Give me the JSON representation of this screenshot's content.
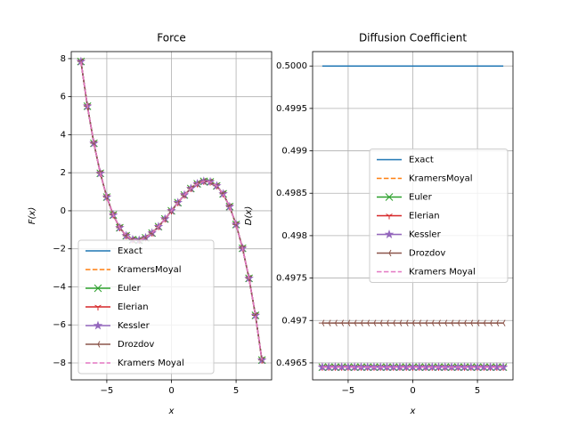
{
  "chart_data": [
    {
      "type": "line",
      "title": "Force",
      "xlabel": "x",
      "ylabel": "F(x)",
      "x": [
        -7,
        -6.5,
        -6,
        -5.5,
        -5,
        -4.5,
        -4,
        -3.5,
        -3,
        -2.5,
        -2,
        -1.5,
        -1,
        -0.5,
        0,
        0.5,
        1,
        1.5,
        2,
        2.5,
        3,
        3.5,
        4,
        4.5,
        5,
        5.5,
        6,
        6.5,
        7
      ],
      "series": [
        {
          "name": "Exact",
          "color": "#1f77b4",
          "marker": null,
          "dash": false,
          "values": [
            7.85,
            5.5,
            3.55,
            1.97,
            0.72,
            -0.22,
            -0.89,
            -1.31,
            -1.52,
            -1.55,
            -1.42,
            -1.17,
            -0.83,
            -0.43,
            0,
            0.43,
            0.83,
            1.17,
            1.42,
            1.55,
            1.52,
            1.31,
            0.89,
            0.22,
            -0.72,
            -1.97,
            -3.55,
            -5.5,
            -7.85
          ]
        },
        {
          "name": "KramersMoyal",
          "color": "#ff7f0e",
          "marker": null,
          "dash": true,
          "values": [
            7.85,
            5.5,
            3.55,
            1.97,
            0.72,
            -0.22,
            -0.89,
            -1.31,
            -1.52,
            -1.55,
            -1.42,
            -1.17,
            -0.83,
            -0.43,
            0,
            0.43,
            0.83,
            1.17,
            1.42,
            1.55,
            1.52,
            1.31,
            0.89,
            0.22,
            -0.72,
            -1.97,
            -3.55,
            -5.5,
            -7.85
          ]
        },
        {
          "name": "Euler",
          "color": "#2ca02c",
          "marker": "x",
          "dash": false,
          "values": [
            7.85,
            5.5,
            3.55,
            1.97,
            0.72,
            -0.22,
            -0.89,
            -1.31,
            -1.52,
            -1.55,
            -1.42,
            -1.17,
            -0.83,
            -0.43,
            0,
            0.43,
            0.83,
            1.17,
            1.42,
            1.55,
            1.52,
            1.31,
            0.89,
            0.22,
            -0.72,
            -1.97,
            -3.55,
            -5.5,
            -7.85
          ]
        },
        {
          "name": "Elerian",
          "color": "#d62728",
          "marker": "tri_down",
          "dash": false,
          "values": [
            7.85,
            5.5,
            3.55,
            1.97,
            0.72,
            -0.22,
            -0.89,
            -1.31,
            -1.52,
            -1.55,
            -1.42,
            -1.17,
            -0.83,
            -0.43,
            0,
            0.43,
            0.83,
            1.17,
            1.42,
            1.55,
            1.52,
            1.31,
            0.89,
            0.22,
            -0.72,
            -1.97,
            -3.55,
            -5.5,
            -7.85
          ]
        },
        {
          "name": "Kessler",
          "color": "#9467bd",
          "marker": "star",
          "dash": false,
          "values": [
            7.85,
            5.5,
            3.55,
            1.97,
            0.72,
            -0.22,
            -0.89,
            -1.31,
            -1.52,
            -1.55,
            -1.42,
            -1.17,
            -0.83,
            -0.43,
            0,
            0.43,
            0.83,
            1.17,
            1.42,
            1.55,
            1.52,
            1.31,
            0.89,
            0.22,
            -0.72,
            -1.97,
            -3.55,
            -5.5,
            -7.85
          ]
        },
        {
          "name": "Drozdov",
          "color": "#8c564b",
          "marker": "tri_left",
          "dash": false,
          "values": [
            7.85,
            5.5,
            3.55,
            1.97,
            0.72,
            -0.22,
            -0.89,
            -1.31,
            -1.52,
            -1.55,
            -1.42,
            -1.17,
            -0.83,
            -0.43,
            0,
            0.43,
            0.83,
            1.17,
            1.42,
            1.55,
            1.52,
            1.31,
            0.89,
            0.22,
            -0.72,
            -1.97,
            -3.55,
            -5.5,
            -7.85
          ]
        },
        {
          "name": "Kramers Moyal",
          "color": "#e377c2",
          "marker": null,
          "dash": true,
          "values": [
            7.85,
            5.5,
            3.55,
            1.97,
            0.72,
            -0.22,
            -0.89,
            -1.31,
            -1.52,
            -1.55,
            -1.42,
            -1.17,
            -0.83,
            -0.43,
            0,
            0.43,
            0.83,
            1.17,
            1.42,
            1.55,
            1.52,
            1.31,
            0.89,
            0.22,
            -0.72,
            -1.97,
            -3.55,
            -5.5,
            -7.85
          ]
        }
      ],
      "xlim": [
        -7.75,
        7.75
      ],
      "xticks": [
        {
          "value": -5,
          "label": "−5"
        },
        0,
        5
      ],
      "ylim": [
        -8.89,
        8.37
      ],
      "yticks": [
        {
          "value": -8,
          "label": "−8"
        },
        {
          "value": -6,
          "label": "−6"
        },
        {
          "value": -4,
          "label": "−4"
        },
        {
          "value": -2,
          "label": "−2"
        },
        0,
        2,
        4,
        6,
        8
      ],
      "grid": true,
      "legend": "lower left"
    },
    {
      "type": "line",
      "title": "Diffusion Coefficient",
      "xlabel": "x",
      "ylabel": "D(x)",
      "x": [
        -7,
        -6.5,
        -6,
        -5.5,
        -5,
        -4.5,
        -4,
        -3.5,
        -3,
        -2.5,
        -2,
        -1.5,
        -1,
        -0.5,
        0,
        0.5,
        1,
        1.5,
        2,
        2.5,
        3,
        3.5,
        4,
        4.5,
        5,
        5.5,
        6,
        6.5,
        7
      ],
      "series": [
        {
          "name": "Exact",
          "color": "#1f77b4",
          "marker": null,
          "dash": false,
          "values": [
            0.5,
            0.5,
            0.5,
            0.5,
            0.5,
            0.5,
            0.5,
            0.5,
            0.5,
            0.5,
            0.5,
            0.5,
            0.5,
            0.5,
            0.5,
            0.5,
            0.5,
            0.5,
            0.5,
            0.5,
            0.5,
            0.5,
            0.5,
            0.5,
            0.5,
            0.5,
            0.5,
            0.5,
            0.5
          ]
        },
        {
          "name": "KramersMoyal",
          "color": "#ff7f0e",
          "marker": null,
          "dash": true,
          "values": [
            0.49645,
            0.49645,
            0.49645,
            0.49645,
            0.49645,
            0.49645,
            0.49645,
            0.49645,
            0.49645,
            0.49645,
            0.49645,
            0.49645,
            0.49645,
            0.49645,
            0.49645,
            0.49645,
            0.49645,
            0.49645,
            0.49645,
            0.49645,
            0.49645,
            0.49645,
            0.49645,
            0.49645,
            0.49645,
            0.49645,
            0.49645,
            0.49645,
            0.49645
          ]
        },
        {
          "name": "Euler",
          "color": "#2ca02c",
          "marker": "x",
          "dash": false,
          "values": [
            0.49645,
            0.49645,
            0.49645,
            0.49645,
            0.49645,
            0.49645,
            0.49645,
            0.49645,
            0.49645,
            0.49645,
            0.49645,
            0.49645,
            0.49645,
            0.49645,
            0.49645,
            0.49645,
            0.49645,
            0.49645,
            0.49645,
            0.49645,
            0.49645,
            0.49645,
            0.49645,
            0.49645,
            0.49645,
            0.49645,
            0.49645,
            0.49645,
            0.49645
          ]
        },
        {
          "name": "Elerian",
          "color": "#d62728",
          "marker": "tri_down",
          "dash": false,
          "values": [
            0.49645,
            0.49645,
            0.49645,
            0.49645,
            0.49645,
            0.49645,
            0.49645,
            0.49645,
            0.49645,
            0.49645,
            0.49645,
            0.49645,
            0.49645,
            0.49645,
            0.49645,
            0.49645,
            0.49645,
            0.49645,
            0.49645,
            0.49645,
            0.49645,
            0.49645,
            0.49645,
            0.49645,
            0.49645,
            0.49645,
            0.49645,
            0.49645,
            0.49645
          ]
        },
        {
          "name": "Kessler",
          "color": "#9467bd",
          "marker": "star",
          "dash": false,
          "values": [
            0.49645,
            0.49645,
            0.49645,
            0.49645,
            0.49645,
            0.49645,
            0.49645,
            0.49645,
            0.49645,
            0.49645,
            0.49645,
            0.49645,
            0.49645,
            0.49645,
            0.49645,
            0.49645,
            0.49645,
            0.49645,
            0.49645,
            0.49645,
            0.49645,
            0.49645,
            0.49645,
            0.49645,
            0.49645,
            0.49645,
            0.49645,
            0.49645,
            0.49645
          ]
        },
        {
          "name": "Drozdov",
          "color": "#8c564b",
          "marker": "tri_left",
          "dash": false,
          "values": [
            0.49697,
            0.49697,
            0.49697,
            0.49697,
            0.49697,
            0.49697,
            0.49697,
            0.49697,
            0.49697,
            0.49697,
            0.49697,
            0.49697,
            0.49697,
            0.49697,
            0.49697,
            0.49697,
            0.49697,
            0.49697,
            0.49697,
            0.49697,
            0.49697,
            0.49697,
            0.49697,
            0.49697,
            0.49697,
            0.49697,
            0.49697,
            0.49697,
            0.49697
          ]
        },
        {
          "name": "Kramers Moyal",
          "color": "#e377c2",
          "marker": null,
          "dash": true,
          "values": [
            0.49645,
            0.49645,
            0.49645,
            0.49645,
            0.49645,
            0.49645,
            0.49645,
            0.49645,
            0.49645,
            0.49645,
            0.49645,
            0.49645,
            0.49645,
            0.49645,
            0.49645,
            0.49645,
            0.49645,
            0.49645,
            0.49645,
            0.49645,
            0.49645,
            0.49645,
            0.49645,
            0.49645,
            0.49645,
            0.49645,
            0.49645,
            0.49645,
            0.49645
          ]
        }
      ],
      "xlim": [
        -7.75,
        7.75
      ],
      "xticks": [
        {
          "value": -5,
          "label": "−5"
        },
        0,
        5
      ],
      "ylim": [
        0.4963,
        0.50017
      ],
      "yticks": [
        0.4965,
        0.497,
        0.4975,
        0.498,
        0.4985,
        0.499,
        0.4995,
        {
          "value": 0.5,
          "label": "0.5000"
        }
      ],
      "grid": true,
      "legend": "center right"
    }
  ]
}
